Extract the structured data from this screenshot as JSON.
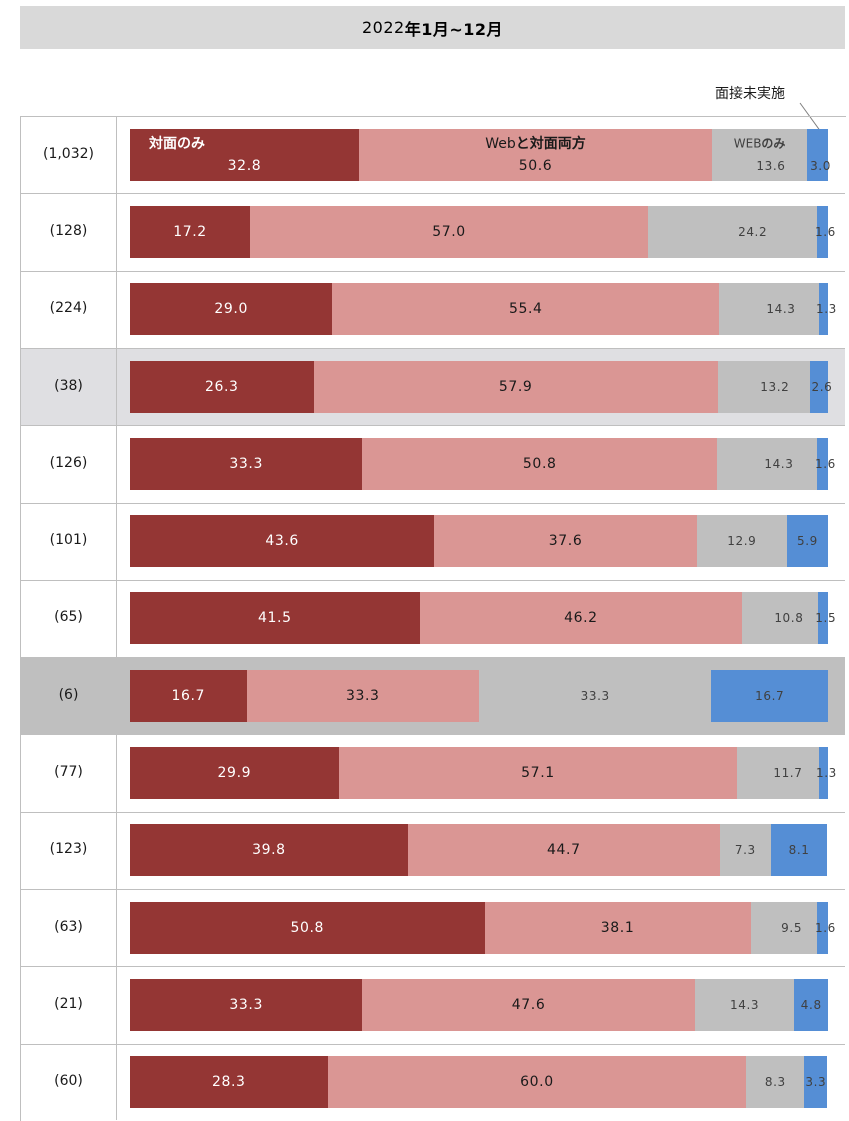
{
  "title_num": "2022",
  "title_rest": "年1月~12月",
  "title_num2": "12",
  "title_end": "月",
  "not_conducted_label": "面接未実施",
  "chart_data": {
    "type": "bar",
    "orientation": "horizontal",
    "stacked": true,
    "percent": true,
    "title": "2022年1月~12月",
    "categories": [
      "(1,032)",
      "(128)",
      "(224)",
      "(38)",
      "(126)",
      "(101)",
      "(65)",
      "(6)",
      "(77)",
      "(123)",
      "(63)",
      "(21)",
      "(60)"
    ],
    "row_shading": [
      "",
      "",
      "",
      "#dfdfe2",
      "",
      "",
      "",
      "#bfbfbf",
      "",
      "",
      "",
      "",
      ""
    ],
    "series": [
      {
        "name": "対面のみ",
        "color": "#943634",
        "label_color": "#ffffff",
        "values": [
          32.8,
          17.2,
          29.0,
          26.3,
          33.3,
          43.6,
          41.5,
          16.7,
          29.9,
          39.8,
          50.8,
          33.3,
          28.3
        ]
      },
      {
        "name": "Webと対面両方",
        "color": "#da9694",
        "label_color": "#1a1a1a",
        "values": [
          50.6,
          57.0,
          55.4,
          57.9,
          50.8,
          37.6,
          46.2,
          33.3,
          57.1,
          44.7,
          38.1,
          47.6,
          60.0
        ]
      },
      {
        "name": "WEBのみ",
        "color": "#bfbfbf",
        "label_color": "#404040",
        "values": [
          13.6,
          24.2,
          14.3,
          13.2,
          14.3,
          12.9,
          10.8,
          33.3,
          11.7,
          7.3,
          9.5,
          14.3,
          8.3
        ]
      },
      {
        "name": "面接未実施",
        "color": "#558ed5",
        "label_color": "#404040",
        "values": [
          3.0,
          1.6,
          1.3,
          2.6,
          1.6,
          5.9,
          1.5,
          16.7,
          1.3,
          8.1,
          1.6,
          4.8,
          3.3
        ]
      }
    ],
    "value_labels": [
      [
        "32.8",
        "50.6",
        "13.6",
        "3.0"
      ],
      [
        "17.2",
        "57.0",
        "24.2",
        "1.6"
      ],
      [
        "29.0",
        "55.4",
        "14.3",
        "1.3"
      ],
      [
        "26.3",
        "57.9",
        "13.2",
        "2.6"
      ],
      [
        "33.3",
        "50.8",
        "14.3",
        "1.6"
      ],
      [
        "43.6",
        "37.6",
        "12.9",
        "5.9"
      ],
      [
        "41.5",
        "46.2",
        "10.8",
        "1.5"
      ],
      [
        "16.7",
        "33.3",
        "33.3",
        "16.7"
      ],
      [
        "29.9",
        "57.1",
        "11.7",
        "1.3"
      ],
      [
        "39.8",
        "44.7",
        "7.3",
        "8.1"
      ],
      [
        "50.8",
        "38.1",
        "9.5",
        "1.6"
      ],
      [
        "33.3",
        "47.6",
        "14.3",
        "4.8"
      ],
      [
        "28.3",
        "60.0",
        "8.3",
        "3.3"
      ]
    ],
    "inline_legend": {
      "face_only": "対面のみ",
      "both_prefix": "Web",
      "both_rest": "と対面両方",
      "web_prefix": "WEB",
      "web_rest": "のみ"
    },
    "xlim": [
      0,
      100
    ],
    "legend": "inline"
  }
}
